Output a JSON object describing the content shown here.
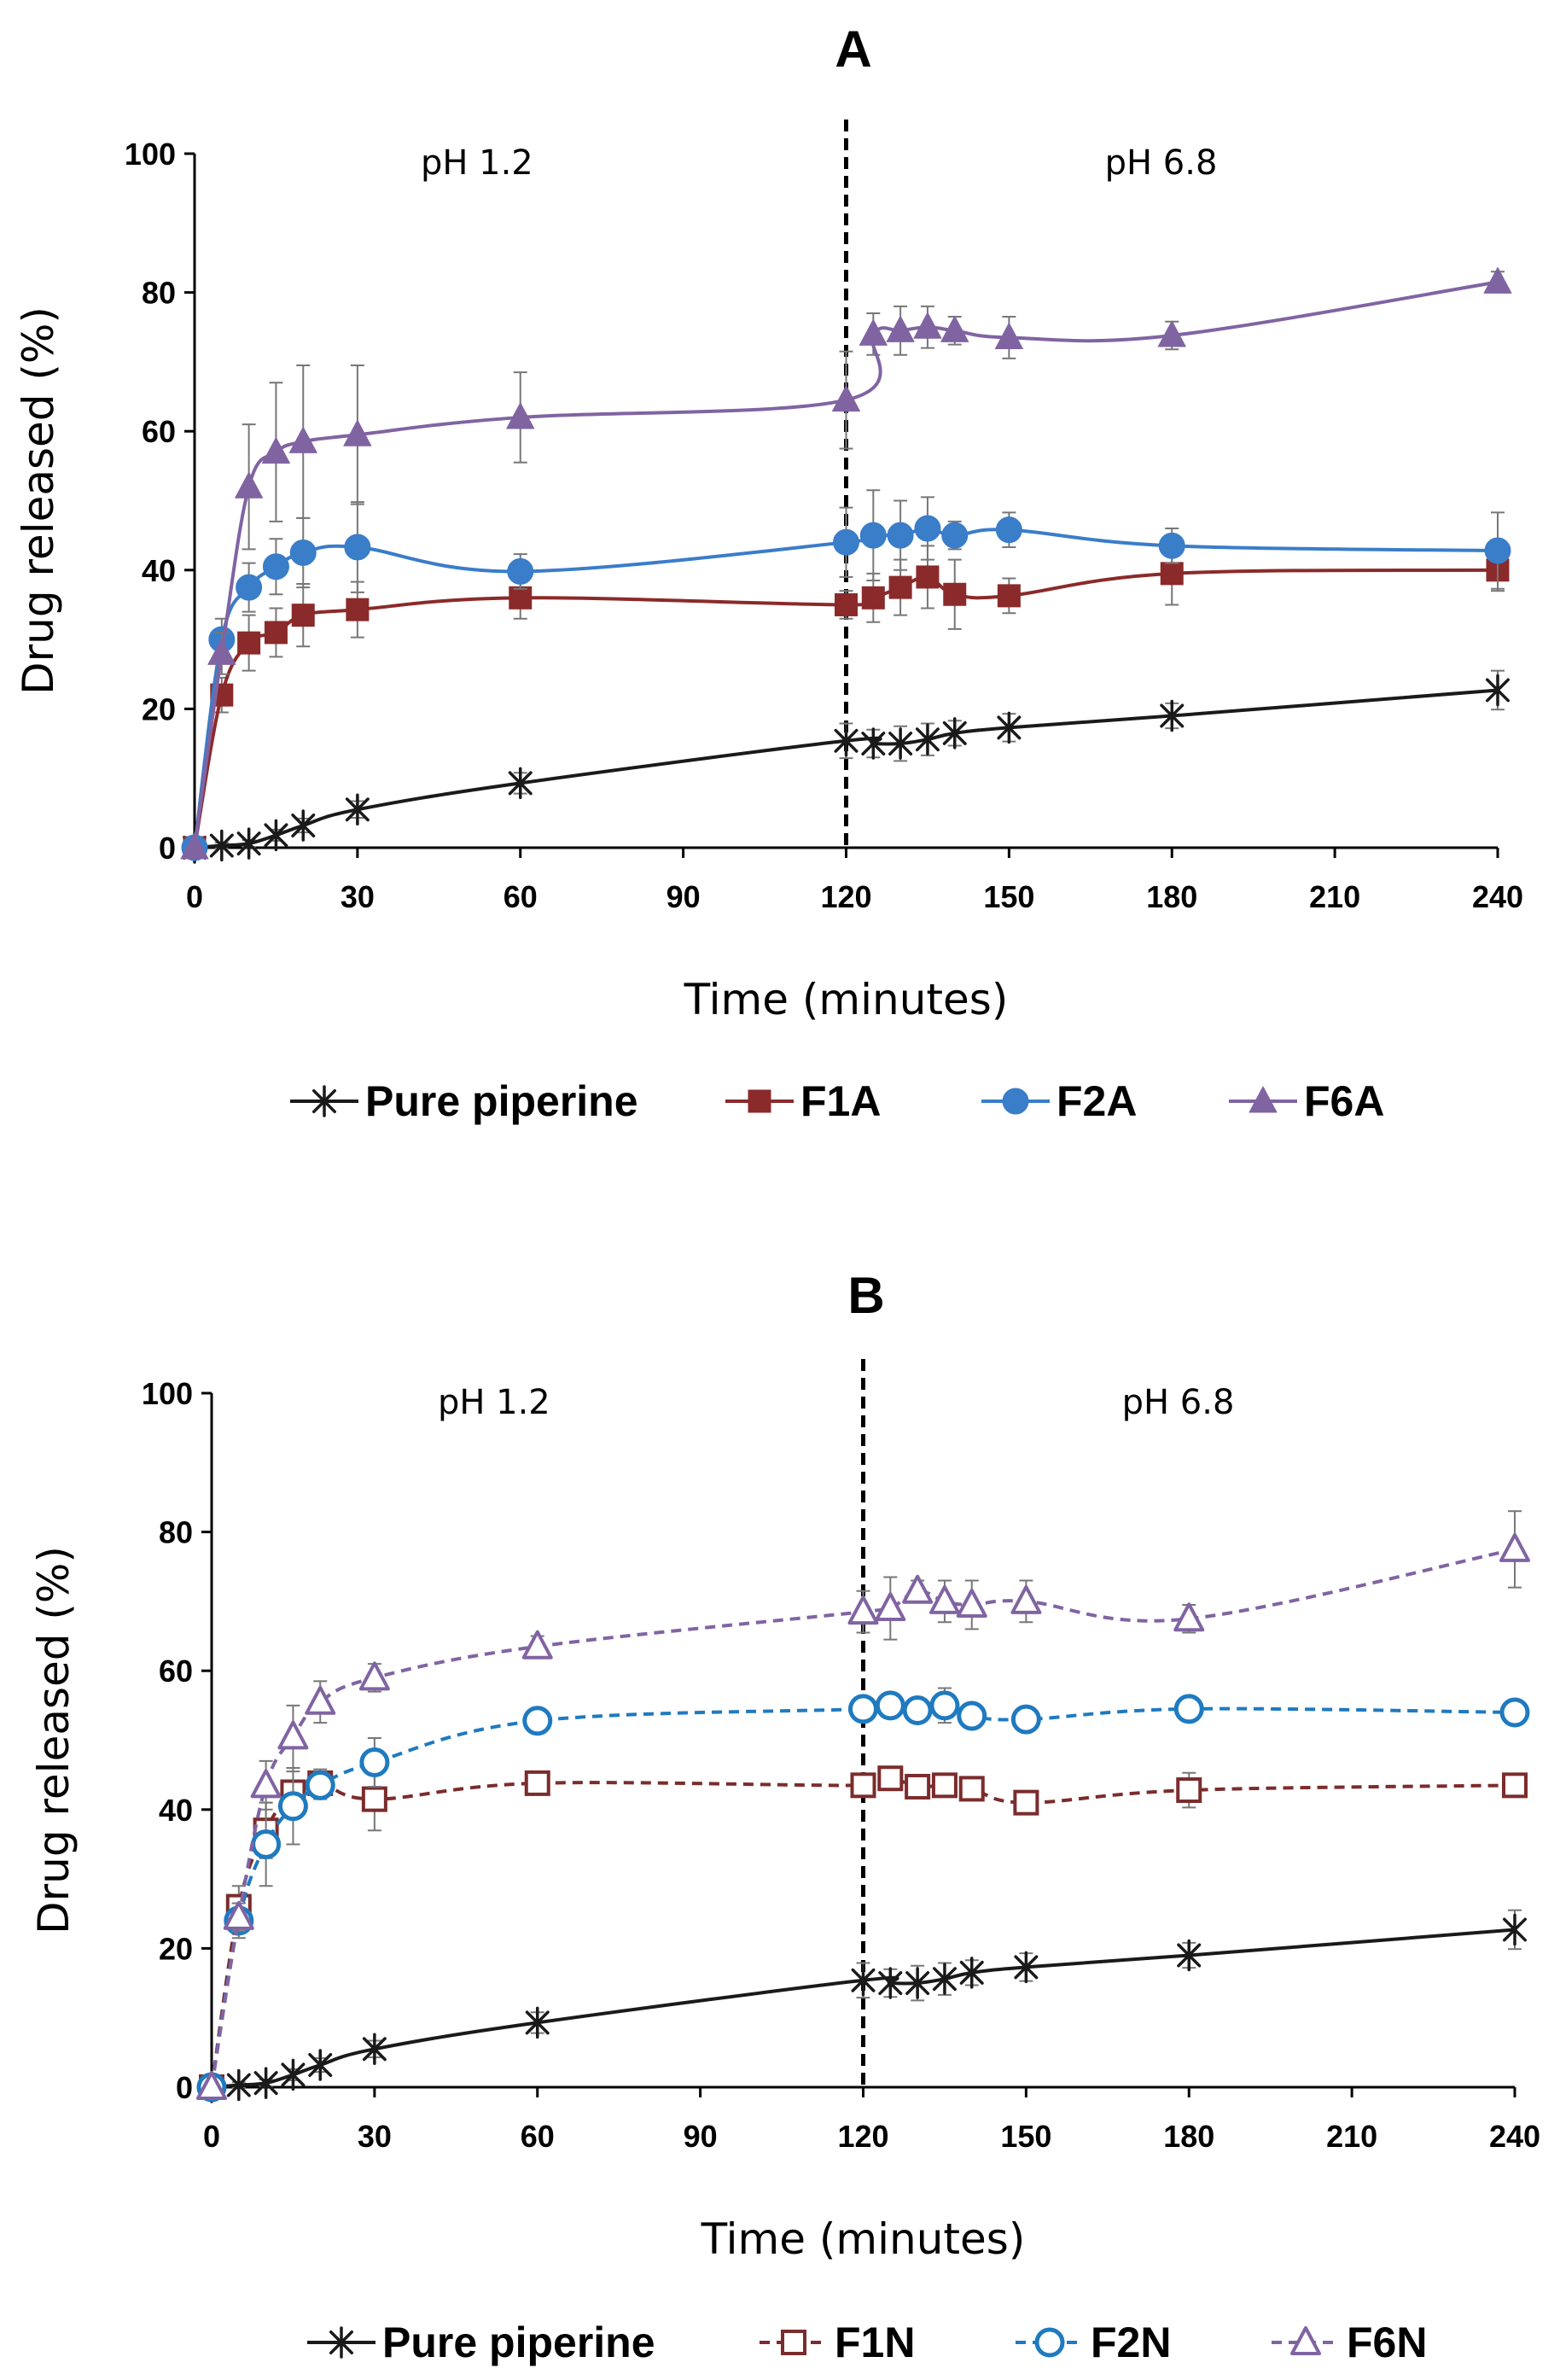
{
  "chart_data": [
    {
      "type": "line",
      "title": "A",
      "xlabel": "Time (minutes)",
      "ylabel": "Drug released (%)",
      "xlim": [
        0,
        240
      ],
      "ylim": [
        0,
        100
      ],
      "xticks": [
        0,
        30,
        60,
        90,
        120,
        150,
        180,
        210,
        240
      ],
      "yticks": [
        0,
        20,
        40,
        60,
        80,
        100
      ],
      "grid": false,
      "legend_position": "bottom",
      "annotations": [
        {
          "text": "pH 1.2",
          "x": 52
        },
        {
          "text": "pH 6.8",
          "x": 178
        }
      ],
      "divider_x": 120,
      "x": [
        0,
        5,
        10,
        15,
        20,
        30,
        60,
        120,
        125,
        130,
        135,
        140,
        150,
        180,
        240
      ],
      "series": [
        {
          "name": "Pure piperine",
          "color": "#1a1a1a",
          "marker": "star",
          "fill": true,
          "dashed": false,
          "values": [
            0,
            0.3,
            0.6,
            1.8,
            3.2,
            5.5,
            9.3,
            15.4,
            15.0,
            15.0,
            15.6,
            16.5,
            17.3,
            19.0,
            22.7
          ],
          "errors": [
            0,
            0.4,
            0.5,
            0.8,
            1.0,
            1.2,
            1.5,
            2.5,
            2.0,
            2.5,
            2.3,
            1.8,
            2.0,
            1.8,
            2.8
          ]
        },
        {
          "name": "F1A",
          "color": "#8b2a2a",
          "marker": "square",
          "fill": true,
          "dashed": false,
          "values": [
            0,
            22.0,
            29.5,
            31.0,
            33.5,
            34.3,
            36.0,
            35.0,
            36.0,
            37.5,
            39.0,
            36.5,
            36.3,
            39.5,
            40.0
          ],
          "errors": [
            0,
            2.5,
            4.0,
            3.5,
            4.5,
            4.0,
            3.0,
            2.0,
            3.5,
            4.0,
            4.5,
            5.0,
            2.5,
            4.5,
            3.0
          ]
        },
        {
          "name": "F2A",
          "color": "#3a7dc9",
          "marker": "circle",
          "fill": true,
          "dashed": false,
          "values": [
            0,
            30.0,
            37.5,
            40.5,
            42.5,
            43.3,
            39.8,
            44.0,
            45.0,
            45.0,
            46.0,
            45.0,
            45.8,
            43.5,
            42.8
          ],
          "errors": [
            0,
            3.0,
            3.5,
            4.0,
            5.0,
            6.5,
            2.5,
            5.0,
            6.5,
            5.0,
            4.5,
            2.0,
            2.5,
            2.5,
            5.5
          ]
        },
        {
          "name": "F6A",
          "color": "#8064a2",
          "marker": "triangle",
          "fill": true,
          "dashed": false,
          "values": [
            0,
            28.0,
            52.0,
            57.0,
            58.5,
            59.5,
            62.0,
            64.5,
            74.0,
            74.5,
            75.0,
            74.5,
            73.5,
            73.8,
            81.5
          ],
          "errors": [
            0,
            3.0,
            9.0,
            10.0,
            11.0,
            10.0,
            6.5,
            7.0,
            3.0,
            3.5,
            3.0,
            2.0,
            3.0,
            2.0,
            1.5
          ]
        }
      ]
    },
    {
      "type": "line",
      "title": "B",
      "xlabel": "Time (minutes)",
      "ylabel": "Drug released (%)",
      "xlim": [
        0,
        240
      ],
      "ylim": [
        0,
        100
      ],
      "xticks": [
        0,
        30,
        60,
        90,
        120,
        150,
        180,
        210,
        240
      ],
      "yticks": [
        0,
        20,
        40,
        60,
        80,
        100
      ],
      "grid": false,
      "legend_position": "bottom",
      "annotations": [
        {
          "text": "pH 1.2",
          "x": 52
        },
        {
          "text": "pH 6.8",
          "x": 178
        }
      ],
      "divider_x": 120,
      "x": [
        0,
        5,
        10,
        15,
        20,
        30,
        60,
        120,
        125,
        130,
        135,
        140,
        150,
        180,
        240
      ],
      "series": [
        {
          "name": "Pure piperine",
          "color": "#1a1a1a",
          "marker": "star",
          "fill": true,
          "dashed": false,
          "values": [
            0,
            0.3,
            0.6,
            1.8,
            3.2,
            5.5,
            9.3,
            15.4,
            15.0,
            15.0,
            15.6,
            16.5,
            17.3,
            19.0,
            22.7
          ],
          "errors": [
            0,
            0.4,
            0.5,
            0.8,
            1.0,
            1.2,
            1.5,
            2.5,
            2.0,
            2.5,
            2.3,
            1.8,
            2.0,
            1.8,
            2.8
          ]
        },
        {
          "name": "F1N",
          "color": "#7b2c2c",
          "marker": "square",
          "fill": false,
          "dashed": true,
          "values": [
            0,
            26.0,
            37.0,
            42.5,
            43.8,
            41.5,
            43.8,
            43.5,
            44.5,
            43.3,
            43.5,
            43.0,
            41.0,
            42.8,
            43.5
          ],
          "errors": [
            0,
            3.0,
            4.0,
            3.0,
            2.0,
            4.5,
            1.5,
            1.5,
            1.5,
            1.2,
            1.5,
            1.5,
            1.5,
            2.5,
            1.0
          ]
        },
        {
          "name": "F2N",
          "color": "#1f7ac0",
          "marker": "circle",
          "fill": false,
          "dashed": true,
          "values": [
            0,
            24.0,
            35.0,
            40.5,
            43.5,
            46.8,
            52.8,
            54.5,
            55.0,
            54.3,
            55.0,
            53.5,
            53.0,
            54.5,
            54.0
          ],
          "errors": [
            0,
            2.5,
            6.0,
            5.5,
            2.0,
            3.5,
            1.5,
            1.0,
            1.0,
            1.0,
            2.5,
            1.5,
            1.0,
            1.0,
            1.0
          ]
        },
        {
          "name": "F6N",
          "color": "#8064a2",
          "marker": "triangle",
          "fill": false,
          "dashed": true,
          "values": [
            0,
            24.5,
            43.5,
            50.5,
            55.5,
            59.0,
            63.5,
            68.5,
            69.0,
            71.5,
            70.0,
            69.5,
            70.0,
            67.5,
            77.5
          ],
          "errors": [
            0,
            2.0,
            3.5,
            4.5,
            3.0,
            2.0,
            1.5,
            3.0,
            4.5,
            1.5,
            3.0,
            3.5,
            3.0,
            2.0,
            5.5
          ]
        }
      ]
    }
  ]
}
